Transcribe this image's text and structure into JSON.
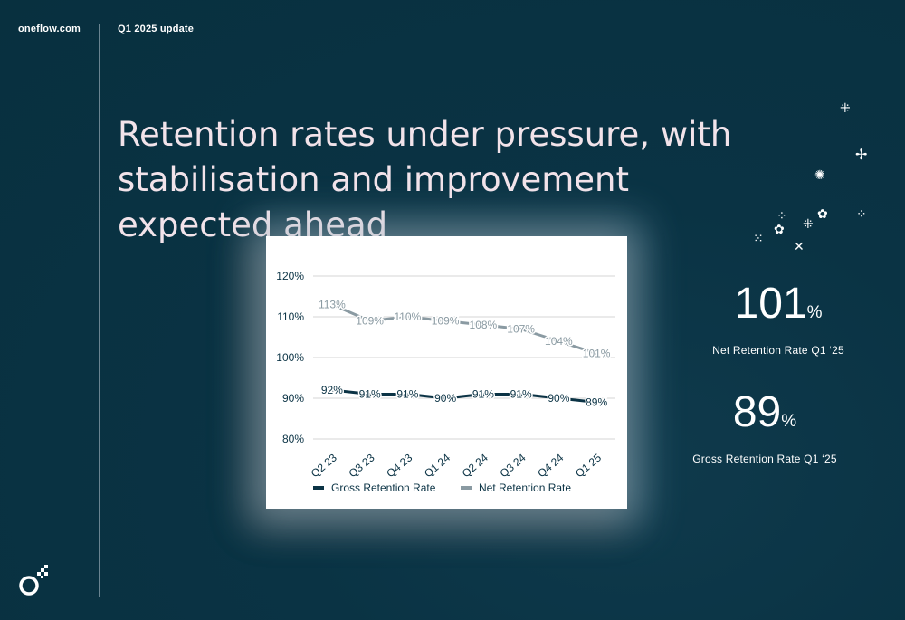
{
  "header": {
    "brand": "oneflow.com",
    "section": "Q1 2025 update"
  },
  "title": "Retention rates under pressure, with stabilisation and improvement expected ahead",
  "kpis": [
    {
      "value": "101",
      "unit": "%",
      "label": "Net Retention Rate Q1 ‘25"
    },
    {
      "value": "89",
      "unit": "%",
      "label": "Gross Retention Rate Q1 ‘25"
    }
  ],
  "chart_data": {
    "type": "line",
    "categories": [
      "Q2 23",
      "Q3 23",
      "Q4 23",
      "Q1 24",
      "Q2 24",
      "Q3 24",
      "Q4 24",
      "Q1 25"
    ],
    "series": [
      {
        "name": "Gross Retention Rate",
        "values": [
          92,
          91,
          91,
          90,
          91,
          91,
          90,
          89
        ],
        "color": "#0b3345",
        "labels": [
          "92%",
          "91%",
          "91%",
          "90%",
          "91%",
          "91%",
          "90%",
          "89%"
        ]
      },
      {
        "name": "Net Retention Rate",
        "values": [
          113,
          109,
          110,
          109,
          108,
          107,
          104,
          101
        ],
        "color": "#8a9aa2",
        "labels": [
          "113%",
          "109%",
          "110%",
          "109%",
          "108%",
          "107%",
          "104%",
          "101%"
        ]
      }
    ],
    "yticks": [
      "80%",
      "90%",
      "100%",
      "110%",
      "120%"
    ],
    "ytick_values": [
      80,
      90,
      100,
      110,
      120
    ],
    "ylim": [
      80,
      120
    ],
    "grid": true,
    "legend": "bottom"
  }
}
